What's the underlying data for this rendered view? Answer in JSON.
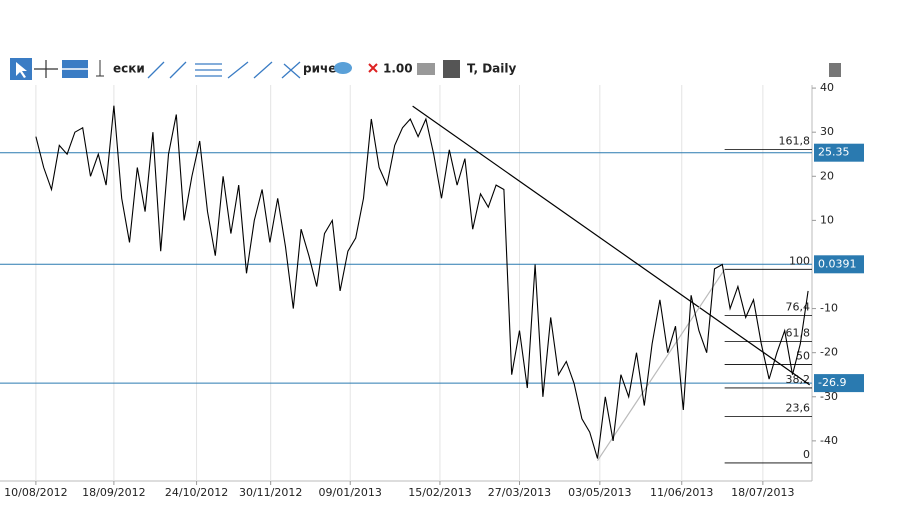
{
  "toolbar": {
    "items": [
      "ески",
      "ричес",
      "1.00",
      "T, Daily"
    ]
  },
  "chart_data": {
    "type": "line",
    "color": "#000000",
    "values": [
      29,
      22,
      17,
      27,
      25,
      30,
      31,
      20,
      25,
      18,
      36,
      15,
      5,
      22,
      12,
      30,
      3,
      25,
      34,
      10,
      20,
      28,
      12,
      2,
      20,
      7,
      18,
      -2,
      10,
      17,
      5,
      15,
      4,
      -10,
      8,
      2,
      -5,
      7,
      10,
      -6,
      3,
      6,
      15,
      33,
      22,
      18,
      27,
      31,
      33,
      29,
      33,
      25,
      15,
      26,
      18,
      24,
      8,
      16,
      13,
      18,
      17,
      -25,
      -15,
      -28,
      0,
      -30,
      -12,
      -25,
      -22,
      -27,
      -35,
      -38,
      -44,
      -30,
      -40,
      -25,
      -30,
      -20,
      -32,
      -18,
      -8,
      -20,
      -14,
      -33,
      -7,
      -15,
      -20,
      -1,
      0,
      -10,
      -5,
      -12,
      -8,
      -18,
      -26,
      -20,
      -15,
      -25,
      -18,
      -6
    ],
    "xlim": [
      -4.6,
      99.5
    ],
    "xticks": [
      {
        "value": 0,
        "label": "10/08/2012"
      },
      {
        "value": 10,
        "label": "18/09/2012"
      },
      {
        "value": 20.6,
        "label": "24/10/2012"
      },
      {
        "value": 30.1,
        "label": "30/11/2012"
      },
      {
        "value": 40.3,
        "label": "09/01/2013"
      },
      {
        "value": 51.8,
        "label": "15/02/2013"
      },
      {
        "value": 62,
        "label": "27/03/2013"
      },
      {
        "value": 72.3,
        "label": "03/05/2013"
      },
      {
        "value": 82.8,
        "label": "11/06/2013"
      },
      {
        "value": 93.2,
        "label": "18/07/2013"
      }
    ],
    "ylim": [
      -49.1,
      40.7
    ],
    "yticks": [
      40,
      30,
      20,
      10,
      -10,
      -20,
      -30,
      -40
    ],
    "price_lines": [
      {
        "value": 25.35,
        "color": "#2a7ab0"
      },
      {
        "value": 0.0391,
        "color": "#2a7ab0"
      },
      {
        "value": -26.9,
        "color": "#2a7ab0"
      }
    ],
    "trendlines": [
      {
        "x": [
          48.3,
          99.2
        ],
        "y": [
          35.9,
          -27.3
        ],
        "color": "#000000"
      },
      {
        "x": [
          72,
          88.3
        ],
        "y": [
          -44.5,
          -1.1
        ],
        "color": "#bbbbbb"
      }
    ],
    "fibonacci": {
      "x": [
        88.3,
        99.5
      ],
      "levels": [
        {
          "label": "161,8",
          "value": 26.1
        },
        {
          "label": "100",
          "value": -1.1
        },
        {
          "label": "76,4",
          "value": -11.6
        },
        {
          "label": "61,8",
          "value": -17.5
        },
        {
          "label": "50",
          "value": -22.7
        },
        {
          "label": "38,2",
          "value": -28
        },
        {
          "label": "23,6",
          "value": -34.5
        },
        {
          "label": "0",
          "value": -45
        }
      ]
    }
  }
}
